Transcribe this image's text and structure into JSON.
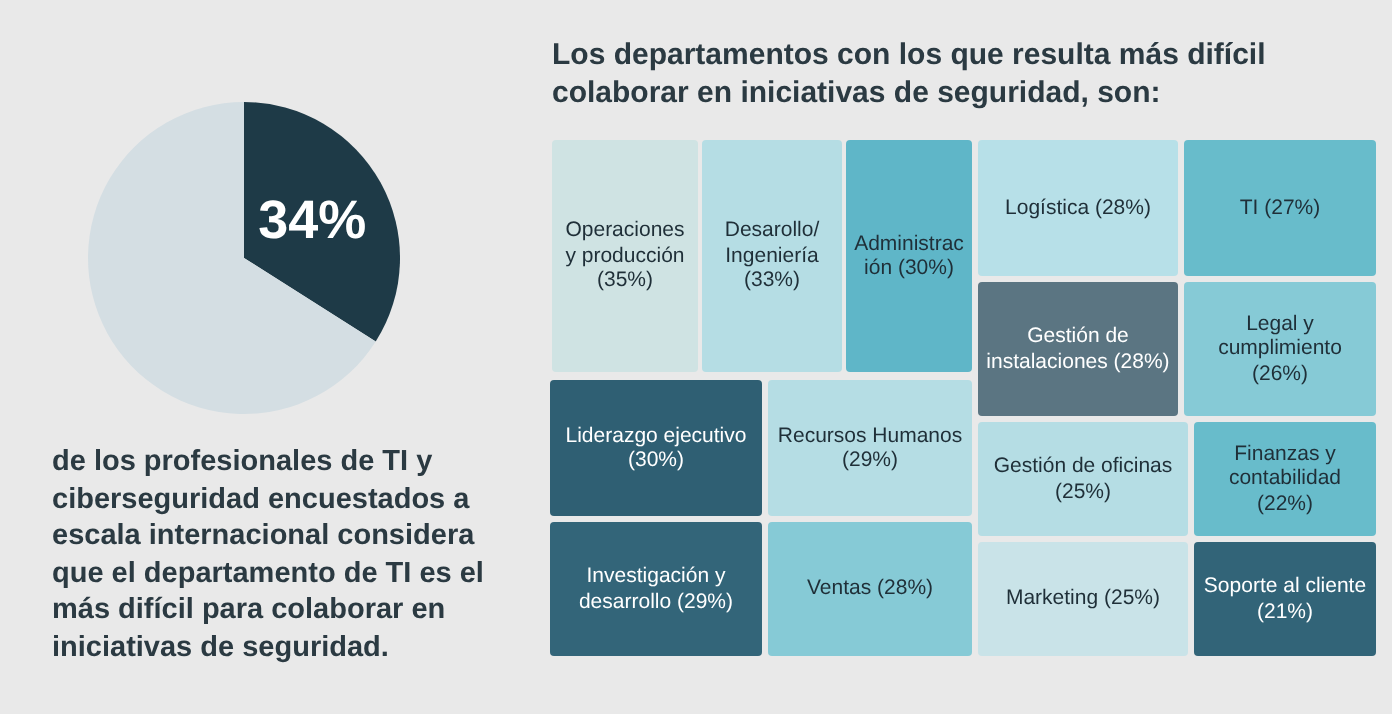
{
  "chart_data": [
    {
      "type": "pie",
      "categories": [
        null,
        null
      ],
      "values": [
        34,
        66
      ],
      "colors": [
        "#1e3a47",
        "#d4dee3"
      ],
      "value_labels": [
        "34%",
        null
      ],
      "annotations": [
        "de los profesionales de TI y ciberseguridad encuestados a escala internacional considera que el departamento de TI es el más difícil para colaborar en iniciativas de seguridad."
      ]
    },
    {
      "type": "other",
      "title": "Los departamentos con los que resulta más difícil colaborar en iniciativas de seguridad, son:",
      "categories": [
        "Operaciones y producción",
        "Desarollo/ Ingeniería",
        "Administración",
        "Logística",
        "TI",
        "Gestión de instalaciones",
        "Legal y cumplimiento",
        "Liderazgo ejecutivo",
        "Recursos Humanos",
        "Gestión de oficinas",
        "Finanzas y contabilidad",
        "Investigación y desarrollo",
        "Ventas",
        "Marketing",
        "Soporte al cliente"
      ],
      "values": [
        35,
        33,
        30,
        28,
        27,
        28,
        26,
        30,
        29,
        25,
        22,
        29,
        28,
        25,
        21
      ],
      "value_labels": [
        "(35%)",
        "(33%)",
        "(30%)",
        "(28%)",
        "(27%)",
        "(28%)",
        "(26%)",
        "(30%)",
        "(29%)",
        "(25%)",
        "(22%)",
        "(29%)",
        "(28%)",
        "(25%)",
        "(21%)"
      ],
      "colors": [
        "#cfe3e3",
        "#b5dde4",
        "#5fb6c8",
        "#b7e0e8",
        "#68bccb",
        "#5b7582",
        "#86cad6",
        "#2f5f73",
        "#b5dde4",
        "#b5dde4",
        "#68bccb",
        "#336579",
        "#86cad6",
        "#c9e3e8",
        "#326478"
      ]
    }
  ]
}
